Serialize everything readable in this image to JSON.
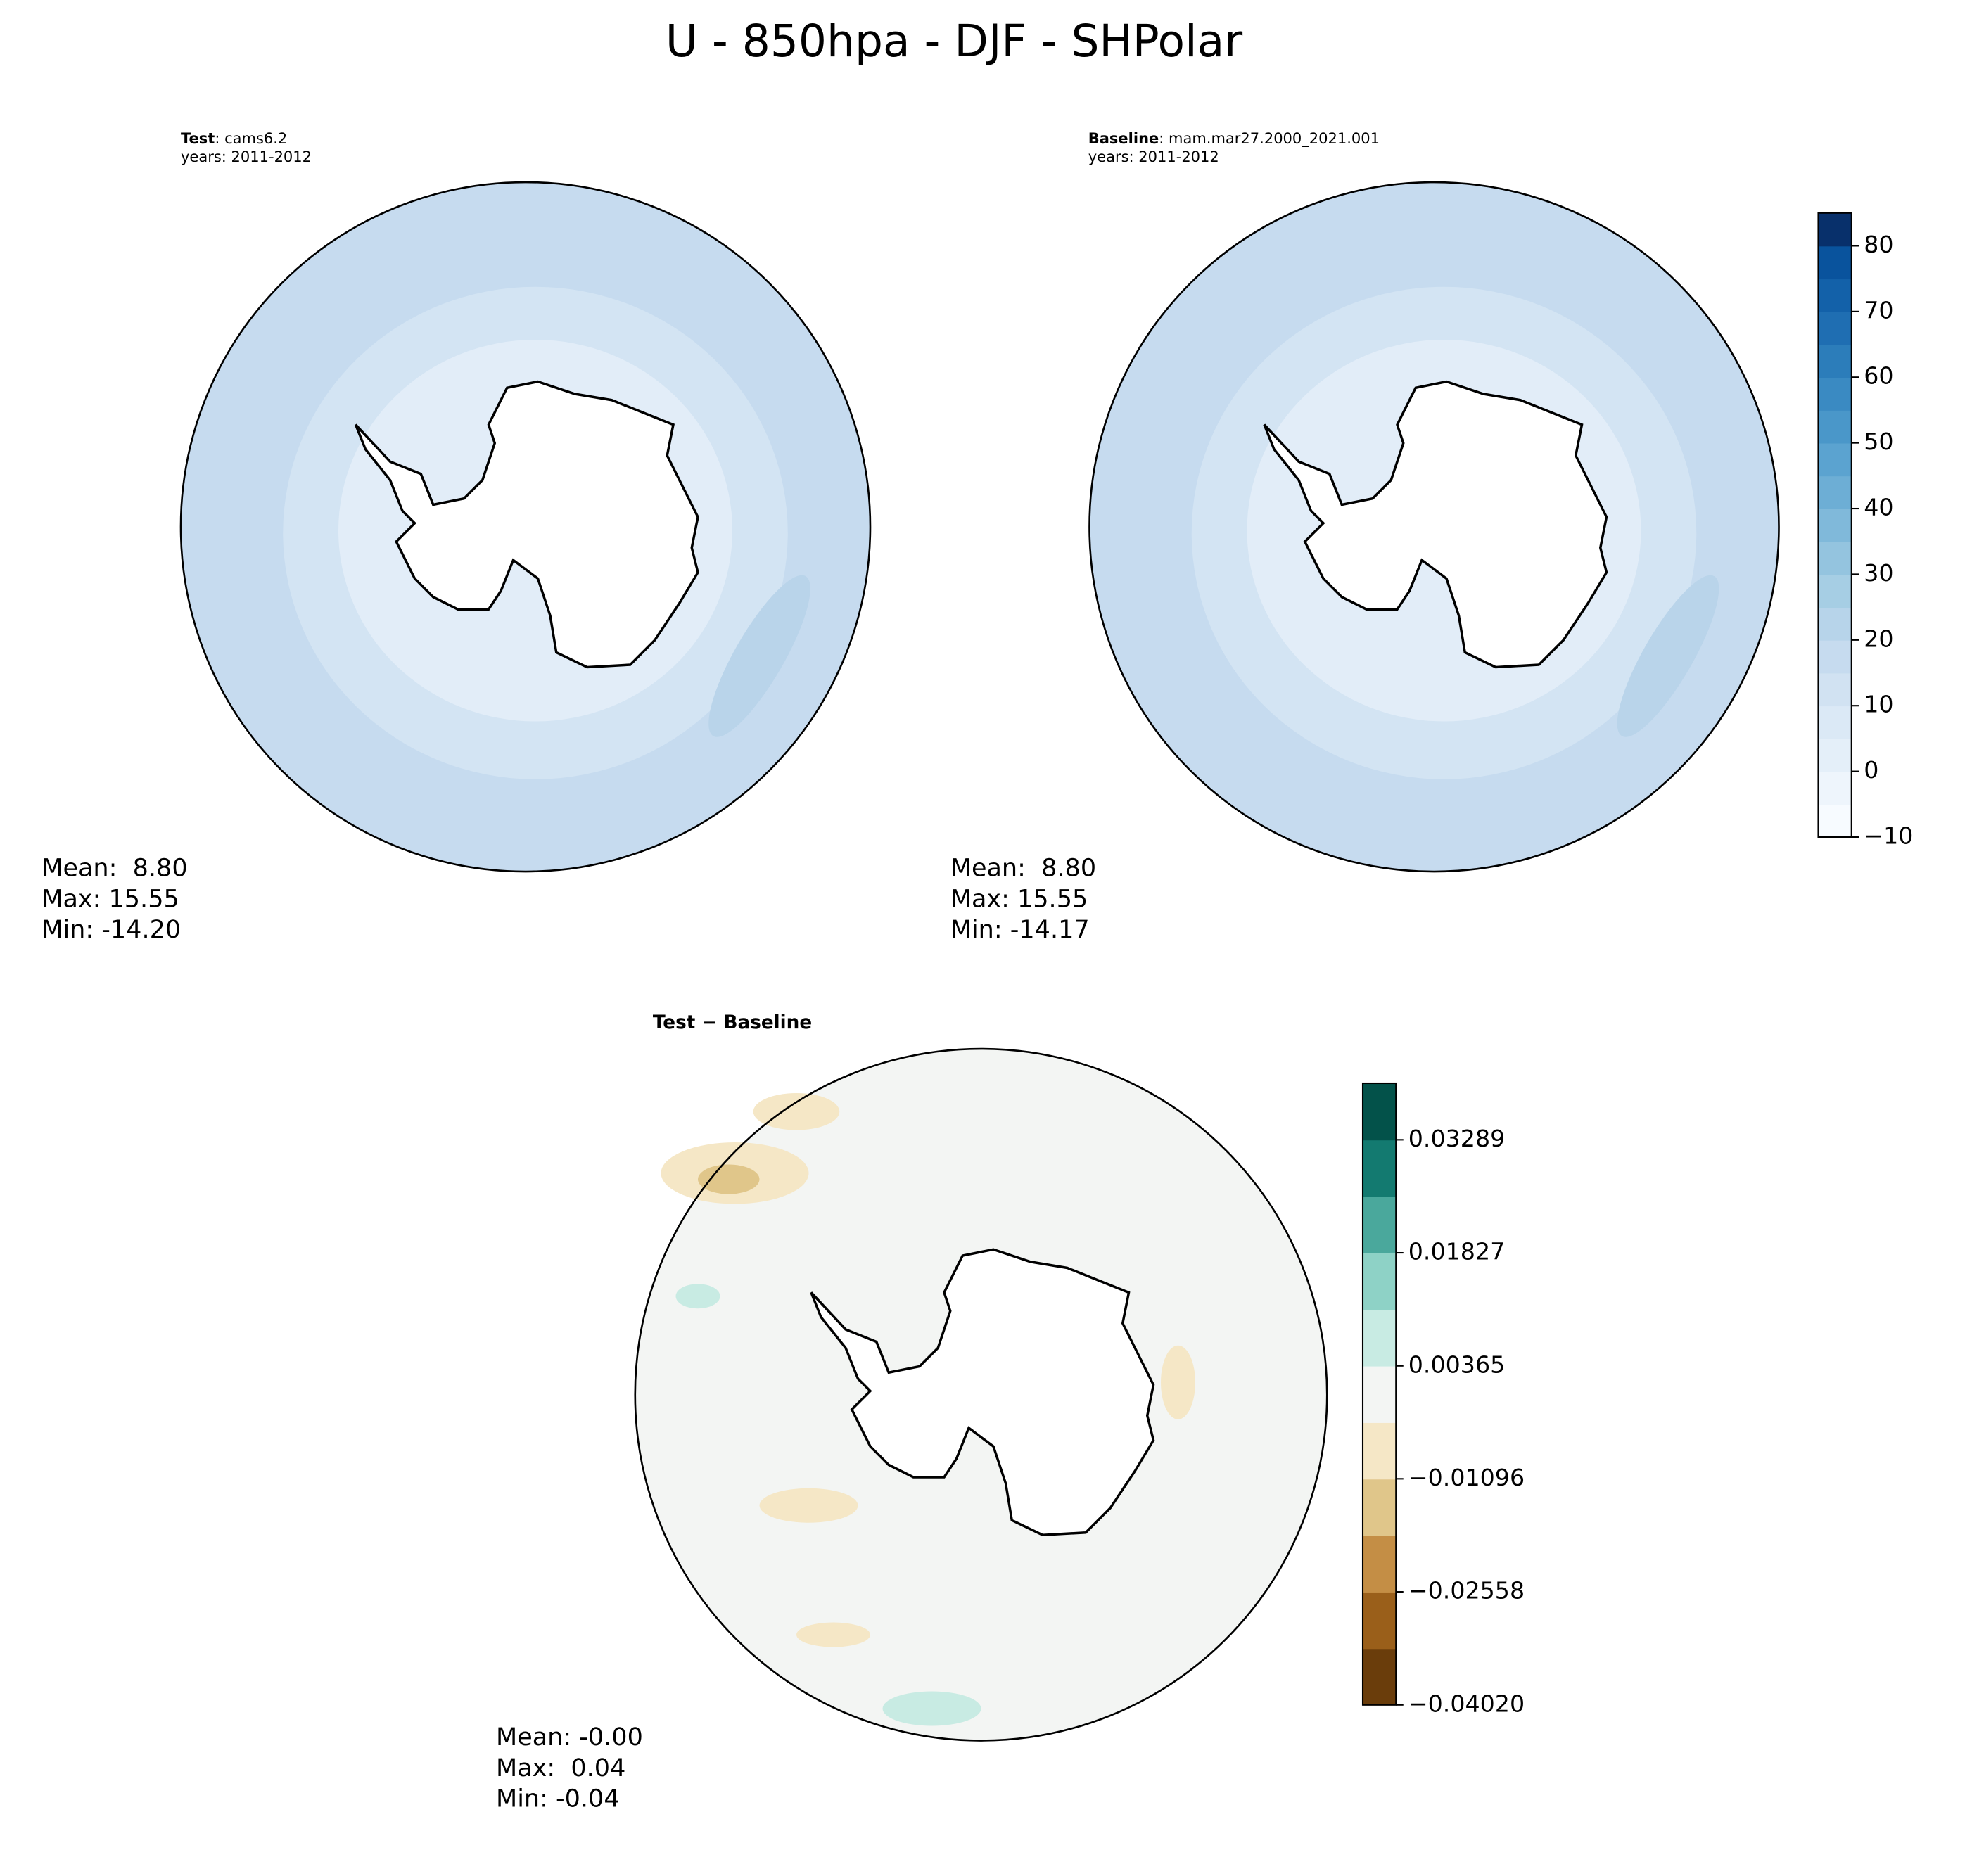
{
  "title": "U - 850hpa - DJF - SHPolar",
  "panels": [
    {
      "label": "Test",
      "case": ": cams6.2",
      "years": "years: 2011-2012",
      "stats": [
        "Mean:  8.80",
        "Max: 15.55",
        "Min: -14.20"
      ]
    },
    {
      "label": "Baseline",
      "case": ": mam.mar27.2000_2021.001",
      "years": "years: 2011-2012",
      "stats": [
        "Mean:  8.80",
        "Max: 15.55",
        "Min: -14.17"
      ]
    },
    {
      "label": "Test − Baseline",
      "stats": [
        "Mean: -0.00",
        "Max:  0.04",
        "Min: -0.04"
      ]
    }
  ],
  "colorbars": [
    {
      "lim": [
        -10,
        85
      ],
      "ticks": [
        {
          "value": -10,
          "label": "−10"
        },
        0,
        10,
        20,
        30,
        40,
        50,
        60,
        70,
        80
      ],
      "colors": [
        "#f7fbff",
        "#eef5fc",
        "#e4eff9",
        "#dbe9f6",
        "#d1e2f2",
        "#c6dbef",
        "#b7d4ea",
        "#a6cee4",
        "#94c4df",
        "#80b9da",
        "#6daed5",
        "#5ba3d0",
        "#4a97c9",
        "#3a8ac2",
        "#2c7dba",
        "#1f6eb2",
        "#1361a9",
        "#09539d",
        "#08306b"
      ]
    },
    {
      "lim": [
        -0.0402,
        0.0402
      ],
      "ticks": [
        {
          "value": -0.0402,
          "label": "−0.04020"
        },
        {
          "value": -0.02558,
          "label": "−0.02558"
        },
        {
          "value": -0.01096,
          "label": "−0.01096"
        },
        0.00365,
        0.01827,
        0.03289
      ],
      "colors": [
        "#6a3d0b",
        "#9a5f1a",
        "#c48e45",
        "#e0c68a",
        "#f5e7c6",
        "#f3f5f3",
        "#c8ebe3",
        "#8ed2c6",
        "#4aa89c",
        "#137a70",
        "#03524a"
      ]
    }
  ]
}
